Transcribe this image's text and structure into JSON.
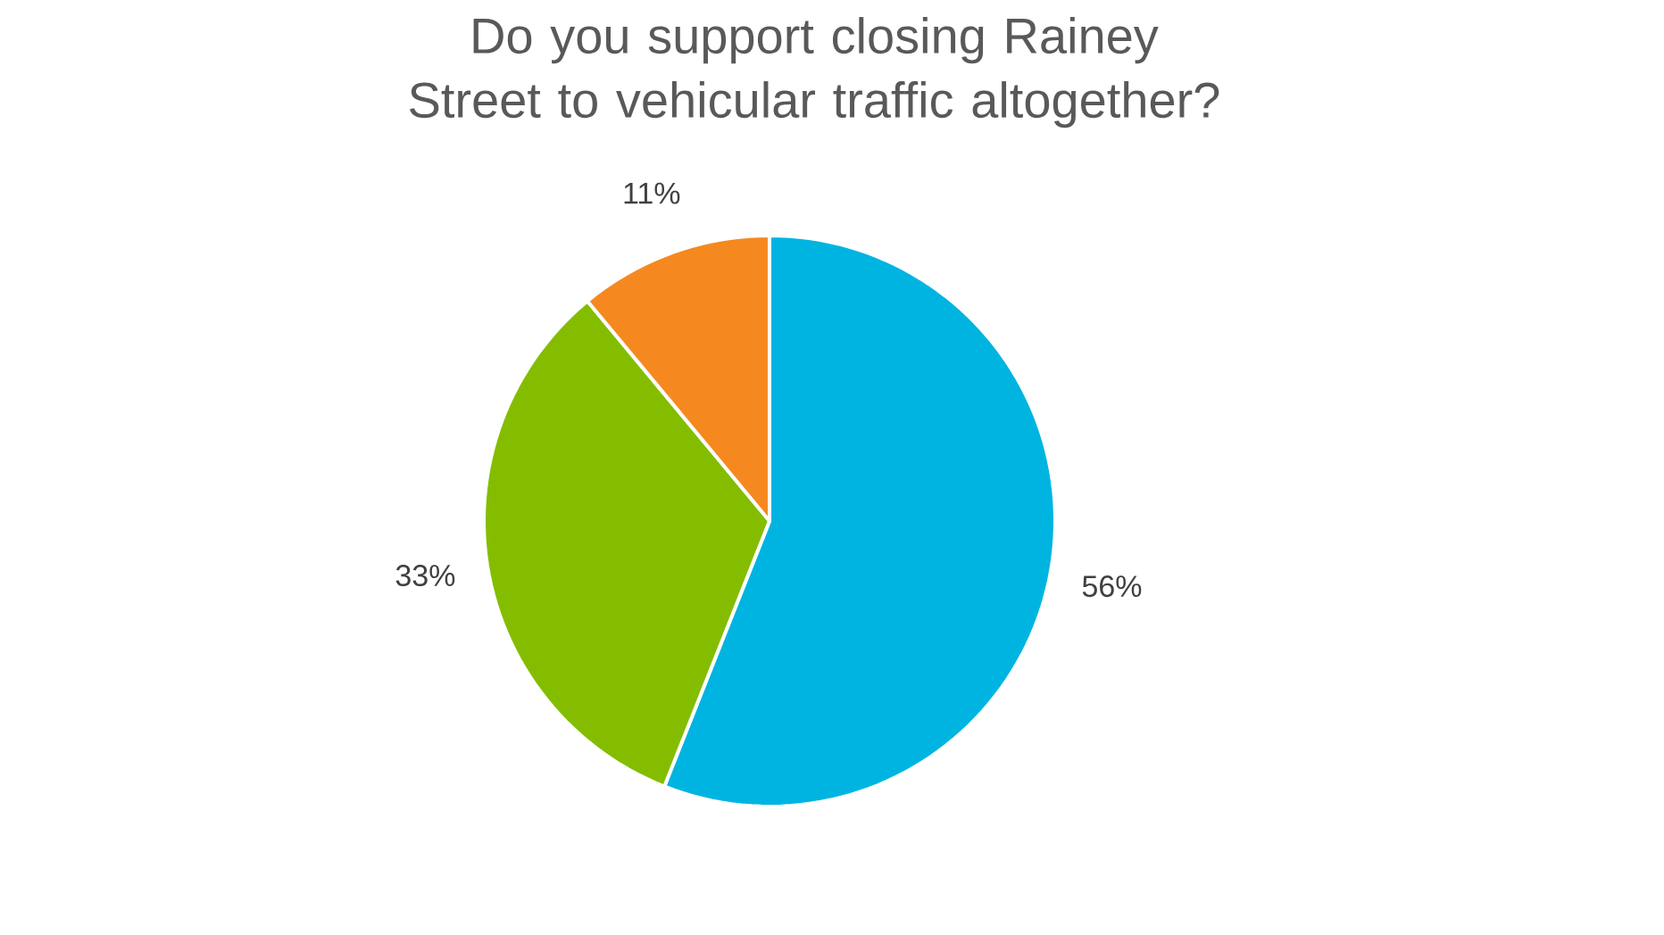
{
  "chart_data": {
    "type": "pie",
    "title": "Do you support closing Rainey Street to vehicular traffic altogether?",
    "categories": [
      null,
      null,
      null
    ],
    "values": [
      56,
      33,
      11
    ],
    "colors": [
      "#00b4e1",
      "#84bd00",
      "#f5891f"
    ],
    "value_labels": [
      "56%",
      "33%",
      "11%"
    ]
  }
}
